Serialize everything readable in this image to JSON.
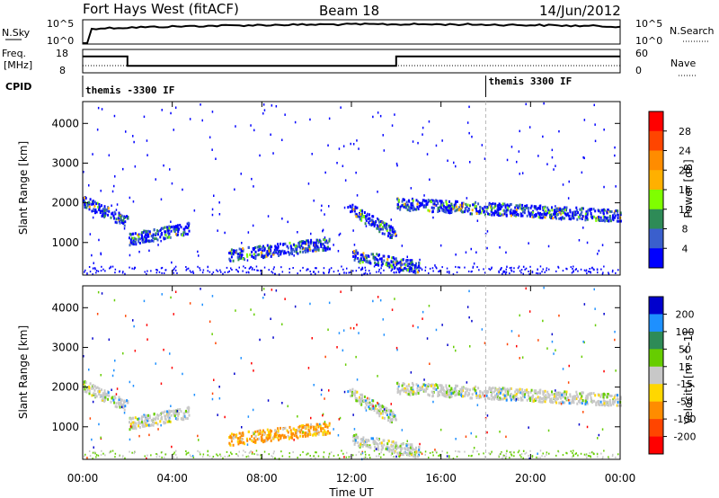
{
  "header": {
    "title": "Fort Hays West (fitACF)",
    "beam": "Beam 18",
    "date": "14/Jun/2012"
  },
  "nsky_panel": {
    "left_label": "N.Sky",
    "right_label": "N.Search",
    "left_ticks": [
      "10^5",
      "10^0"
    ],
    "right_ticks": [
      "10^5",
      "10^0"
    ]
  },
  "freq_panel": {
    "left_label_1": "Freq.",
    "left_label_2": "[MHz]",
    "right_label": "Nave",
    "left_ticks": [
      "18",
      "8"
    ],
    "right_ticks": [
      "60",
      "0"
    ]
  },
  "cpid_panel": {
    "label": "CPID",
    "segments": [
      "themis -3300 IF",
      "themis 3300 IF"
    ]
  },
  "xaxis": {
    "label": "Time UT",
    "ticks": [
      "00:00",
      "04:00",
      "08:00",
      "12:00",
      "16:00",
      "20:00",
      "00:00"
    ]
  },
  "power_panel": {
    "ylabel": "Slant Range [km]",
    "yticks": [
      "4000",
      "3000",
      "2000",
      "1000"
    ],
    "cbar_label": "Power [dB]",
    "cbar_ticks": [
      "28",
      "24",
      "20",
      "16",
      "12",
      "8",
      "4"
    ],
    "cbar_colors": [
      "#ff0000",
      "#ff4500",
      "#ff8c00",
      "#ffb000",
      "#7fff00",
      "#2e8b57",
      "#3a5fcd",
      "#0000ff"
    ]
  },
  "velocity_panel": {
    "ylabel": "Slant Range [km]",
    "yticks": [
      "4000",
      "3000",
      "2000",
      "1000"
    ],
    "cbar_label": "Velocity [m s^-1]",
    "cbar_ticks": [
      "200",
      "100",
      "50",
      "15",
      "-15",
      "-50",
      "-100",
      "-200"
    ],
    "cbar_colors": [
      "#0000cd",
      "#1e90ff",
      "#2e8b57",
      "#66cd00",
      "#c8c8c8",
      "#ffd700",
      "#ff8c00",
      "#ff4500",
      "#ff0000"
    ]
  },
  "chart_data": {
    "type": "heatmap",
    "x_range_hours": [
      0,
      24
    ],
    "y_range_km": [
      180,
      4550
    ],
    "frequency_steps": [
      {
        "start_h": 0.0,
        "end_h": 2.0,
        "freq_mhz": 15
      },
      {
        "start_h": 2.0,
        "end_h": 14.0,
        "freq_mhz": 11
      },
      {
        "start_h": 14.0,
        "end_h": 24.0,
        "freq_mhz": 15
      }
    ],
    "cpid_switch_h": 18.0,
    "echo_bands": [
      {
        "start_h": 0.0,
        "end_h": 2.0,
        "range_start_km": 2050,
        "range_end_km": 1550,
        "velocity": "low"
      },
      {
        "start_h": 2.0,
        "end_h": 4.8,
        "range_start_km": 1100,
        "range_end_km": 1400,
        "velocity": "low"
      },
      {
        "start_h": 6.5,
        "end_h": 11.0,
        "range_start_km": 700,
        "range_end_km": 1000,
        "velocity": "negative"
      },
      {
        "start_h": 11.8,
        "end_h": 14.0,
        "range_start_km": 1900,
        "range_end_km": 1200,
        "velocity": "low"
      },
      {
        "start_h": 12.0,
        "end_h": 15.0,
        "range_start_km": 700,
        "range_end_km": 400,
        "velocity": "low"
      },
      {
        "start_h": 14.0,
        "end_h": 24.0,
        "range_start_km": 2000,
        "range_end_km": 1700,
        "velocity": "low"
      }
    ]
  }
}
